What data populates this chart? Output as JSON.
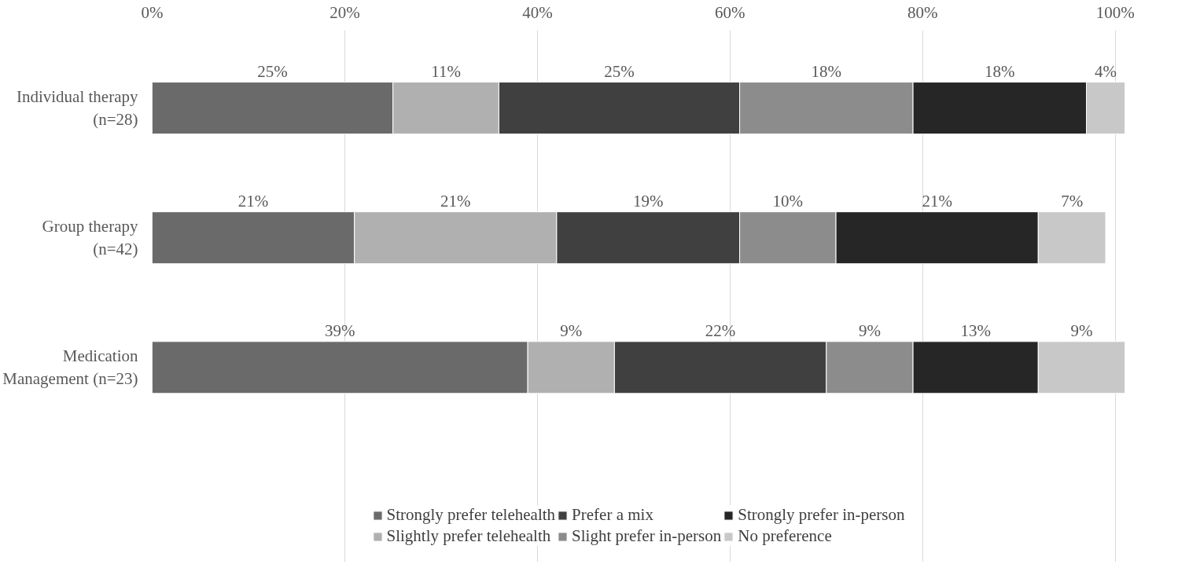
{
  "chart_data": {
    "type": "bar",
    "orientation": "horizontal",
    "stacked": true,
    "categories": [
      "Individual therapy\n(n=28)",
      "Group therapy\n(n=42)",
      "Medication\nManagement (n=23)"
    ],
    "series": [
      {
        "name": "Strongly prefer telehealth",
        "color": "#6a6a6a",
        "values": [
          25,
          21,
          39
        ],
        "value_labels": [
          "25%",
          "21%",
          "39%"
        ]
      },
      {
        "name": "Slightly prefer telehealth",
        "color": "#b0b0b0",
        "values": [
          11,
          21,
          9
        ],
        "value_labels": [
          "11%",
          "21%",
          "9%"
        ]
      },
      {
        "name": "Prefer a mix",
        "color": "#404040",
        "values": [
          25,
          19,
          22
        ],
        "value_labels": [
          "25%",
          "19%",
          "22%"
        ]
      },
      {
        "name": "Slight prefer in-person",
        "color": "#8c8c8c",
        "values": [
          18,
          10,
          9
        ],
        "value_labels": [
          "18%",
          "10%",
          "9%"
        ]
      },
      {
        "name": "Strongly prefer in-person",
        "color": "#262626",
        "values": [
          18,
          21,
          13
        ],
        "value_labels": [
          "18%",
          "21%",
          "13%"
        ]
      },
      {
        "name": "No preference",
        "color": "#c8c8c8",
        "values": [
          4,
          7,
          9
        ],
        "value_labels": [
          "4%",
          "7%",
          "9%"
        ]
      }
    ],
    "xlim": [
      0,
      101
    ],
    "xticks": [
      {
        "value": 0,
        "label": "0%"
      },
      {
        "value": 20,
        "label": "20%"
      },
      {
        "value": 40,
        "label": "40%"
      },
      {
        "value": 60,
        "label": "60%"
      },
      {
        "value": 80,
        "label": "80%"
      },
      {
        "value": 100,
        "label": "100%"
      }
    ],
    "grid": "x",
    "legend": "bottom"
  }
}
